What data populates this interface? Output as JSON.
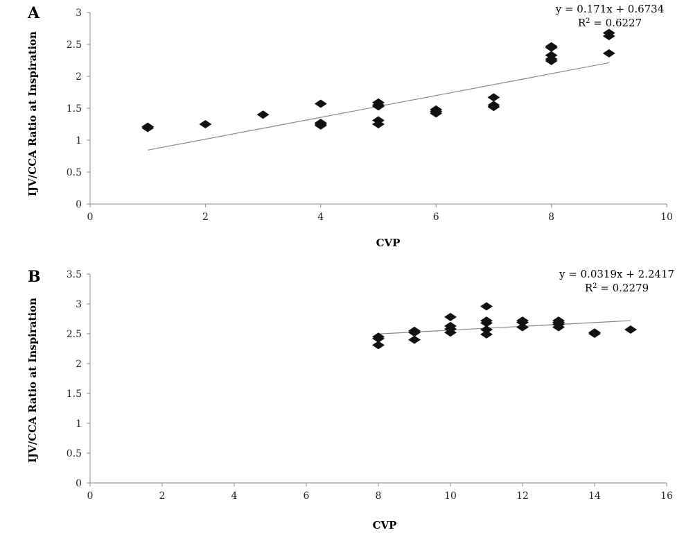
{
  "chart_data": [
    {
      "panel": "A",
      "type": "scatter",
      "title": "",
      "xlabel": "CVP",
      "ylabel": "IJV/CCA Ratio at Inspiration",
      "xlim": [
        0,
        10
      ],
      "ylim": [
        0,
        3
      ],
      "xticks": [
        "0",
        "2",
        "4",
        "6",
        "8",
        "10"
      ],
      "yticks": [
        "0",
        "0.5",
        "1",
        "1.5",
        "2",
        "2.5",
        "3"
      ],
      "grid": false,
      "points": [
        [
          1,
          1.19
        ],
        [
          1,
          1.21
        ],
        [
          2,
          1.25
        ],
        [
          3,
          1.4
        ],
        [
          4,
          1.57
        ],
        [
          4,
          1.27
        ],
        [
          4,
          1.25
        ],
        [
          4,
          1.23
        ],
        [
          5,
          1.59
        ],
        [
          5,
          1.55
        ],
        [
          5,
          1.53
        ],
        [
          5,
          1.31
        ],
        [
          5,
          1.25
        ],
        [
          6,
          1.48
        ],
        [
          6,
          1.45
        ],
        [
          6,
          1.42
        ],
        [
          7,
          1.67
        ],
        [
          7,
          1.55
        ],
        [
          7,
          1.52
        ],
        [
          8,
          2.47
        ],
        [
          8,
          2.45
        ],
        [
          8,
          2.33
        ],
        [
          8,
          2.27
        ],
        [
          8,
          2.24
        ],
        [
          9,
          2.68
        ],
        [
          9,
          2.63
        ],
        [
          9,
          2.36
        ]
      ],
      "trendline": {
        "slope": 0.171,
        "intercept": 0.6734,
        "x_range": [
          1,
          9
        ]
      },
      "equation": "y = 0.171x + 0.6734",
      "r2_label": "R",
      "r2_value": " = 0.6227"
    },
    {
      "panel": "B",
      "type": "scatter",
      "title": "",
      "xlabel": "CVP",
      "ylabel": "IJV/CCA Ratio at Inspiration",
      "xlim": [
        0,
        16
      ],
      "ylim": [
        0,
        3.5
      ],
      "xticks": [
        "0",
        "2",
        "4",
        "6",
        "8",
        "10",
        "12",
        "14",
        "16"
      ],
      "yticks": [
        "0",
        "0.5",
        "1",
        "1.5",
        "2",
        "2.5",
        "3",
        "3.5"
      ],
      "grid": false,
      "points": [
        [
          8,
          2.45
        ],
        [
          8,
          2.42
        ],
        [
          8,
          2.31
        ],
        [
          9,
          2.55
        ],
        [
          9,
          2.52
        ],
        [
          9,
          2.4
        ],
        [
          10,
          2.78
        ],
        [
          10,
          2.63
        ],
        [
          10,
          2.58
        ],
        [
          10,
          2.52
        ],
        [
          11,
          2.96
        ],
        [
          11,
          2.72
        ],
        [
          11,
          2.68
        ],
        [
          11,
          2.57
        ],
        [
          11,
          2.49
        ],
        [
          12,
          2.72
        ],
        [
          12,
          2.69
        ],
        [
          12,
          2.61
        ],
        [
          13,
          2.72
        ],
        [
          13,
          2.69
        ],
        [
          13,
          2.66
        ],
        [
          13,
          2.61
        ],
        [
          14,
          2.52
        ],
        [
          14,
          2.5
        ],
        [
          15,
          2.57
        ]
      ],
      "trendline": {
        "slope": 0.0319,
        "intercept": 2.2417,
        "x_range": [
          8,
          15
        ]
      },
      "equation": "y = 0.0319x + 2.2417",
      "r2_label": "R",
      "r2_value": " = 0.2279"
    }
  ],
  "colors": {
    "marker": "#111111",
    "trendline": "#7f8c8d",
    "axis": "#888888"
  }
}
